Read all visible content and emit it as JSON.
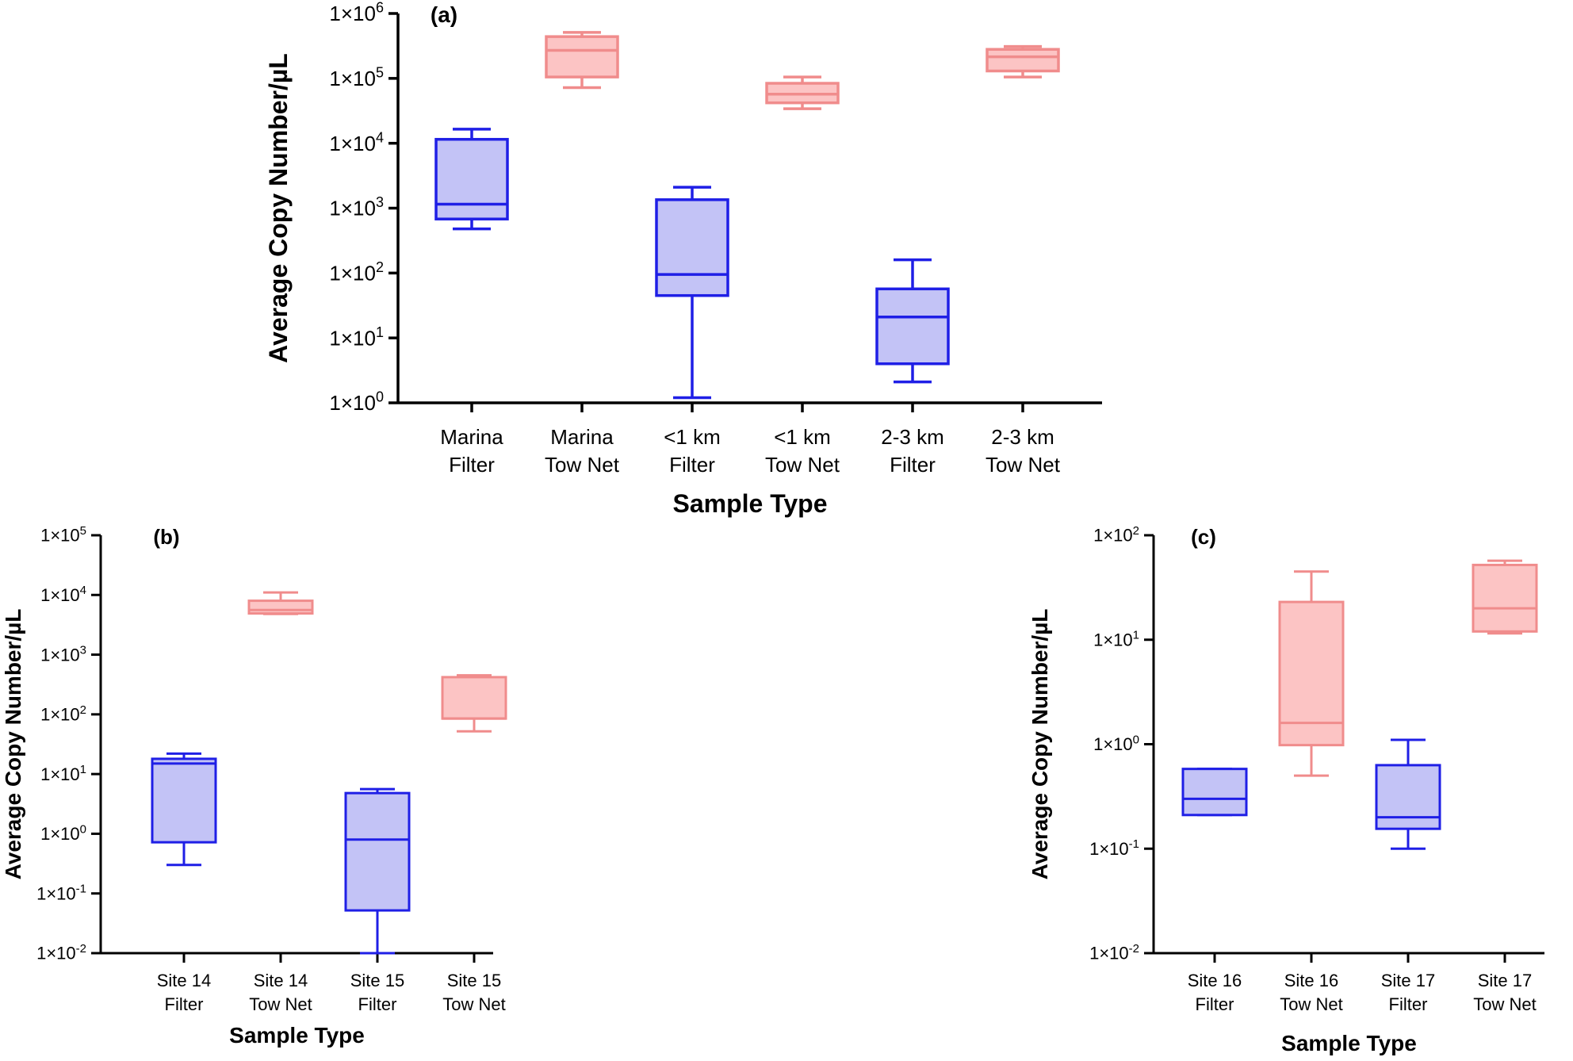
{
  "colors": {
    "filter_stroke": "#1f1fe6",
    "filter_fill": "#c3c3f6",
    "townet_stroke": "#f08c8c",
    "townet_fill": "#fcc4c4",
    "axis": "#000000"
  },
  "chart_data": [
    {
      "id": "a",
      "type": "box",
      "panel_label": "(a)",
      "xlabel": "Sample Type",
      "ylabel": "Average Copy Number/µL",
      "scale": "log10",
      "ylim_exp": [
        0,
        6
      ],
      "ytick_labels": [
        {
          "base": "1×10",
          "exp": "0"
        },
        {
          "base": "1×10",
          "exp": "1"
        },
        {
          "base": "1×10",
          "exp": "2"
        },
        {
          "base": "1×10",
          "exp": "3"
        },
        {
          "base": "1×10",
          "exp": "4"
        },
        {
          "base": "1×10",
          "exp": "5"
        },
        {
          "base": "1×10",
          "exp": "6"
        }
      ],
      "categories": [
        {
          "line1": "Marina",
          "line2": "Filter",
          "kind": "filter",
          "min": 480,
          "q1": 680,
          "median": 1150,
          "q3": 11500,
          "max": 16500
        },
        {
          "line1": "Marina",
          "line2": "Tow Net",
          "kind": "townet",
          "min": 72000,
          "q1": 105000,
          "median": 270000,
          "q3": 440000,
          "max": 510000
        },
        {
          "line1": "<1 km",
          "line2": "Filter",
          "kind": "filter",
          "min": 1.2,
          "q1": 45,
          "median": 95,
          "q3": 1350,
          "max": 2100
        },
        {
          "line1": "<1 km",
          "line2": "Tow Net",
          "kind": "townet",
          "min": 34000,
          "q1": 42000,
          "median": 57000,
          "q3": 84000,
          "max": 105000
        },
        {
          "line1": "2-3 km",
          "line2": "Filter",
          "kind": "filter",
          "min": 2.1,
          "q1": 4,
          "median": 21,
          "q3": 57,
          "max": 160
        },
        {
          "line1": "2-3 km",
          "line2": "Tow Net",
          "kind": "townet",
          "min": 105000,
          "q1": 130000,
          "median": 215000,
          "q3": 280000,
          "max": 310000
        }
      ]
    },
    {
      "id": "b",
      "type": "box",
      "panel_label": "(b)",
      "xlabel": "Sample Type",
      "ylabel": "Average Copy Number/µL",
      "scale": "log10",
      "ylim_exp": [
        -2,
        5
      ],
      "ytick_labels": [
        {
          "base": "1×10",
          "exp": "-2"
        },
        {
          "base": "1×10",
          "exp": "-1"
        },
        {
          "base": "1×10",
          "exp": "0"
        },
        {
          "base": "1×10",
          "exp": "1"
        },
        {
          "base": "1×10",
          "exp": "2"
        },
        {
          "base": "1×10",
          "exp": "3"
        },
        {
          "base": "1×10",
          "exp": "4"
        },
        {
          "base": "1×10",
          "exp": "5"
        }
      ],
      "categories": [
        {
          "line1": "Site 14",
          "line2": "Filter",
          "kind": "filter",
          "min": 0.3,
          "q1": 0.72,
          "median": 15,
          "q3": 18,
          "max": 22
        },
        {
          "line1": "Site 14",
          "line2": "Tow Net",
          "kind": "townet",
          "min": 4800,
          "q1": 4900,
          "median": 5600,
          "q3": 8000,
          "max": 11000
        },
        {
          "line1": "Site 15",
          "line2": "Filter",
          "kind": "filter",
          "min": 0.01,
          "q1": 0.052,
          "median": 0.8,
          "q3": 4.8,
          "max": 5.6
        },
        {
          "line1": "Site 15",
          "line2": "Tow Net",
          "kind": "townet",
          "min": 52,
          "q1": 85,
          "median": 85,
          "q3": 420,
          "max": 450
        }
      ]
    },
    {
      "id": "c",
      "type": "box",
      "panel_label": "(c)",
      "xlabel": "Sample Type",
      "ylabel": "Average Copy Number/µL",
      "scale": "log10",
      "ylim_exp": [
        -2,
        2
      ],
      "ytick_labels": [
        {
          "base": "1×10",
          "exp": "-2"
        },
        {
          "base": "1×10",
          "exp": "-1"
        },
        {
          "base": "1×10",
          "exp": "0"
        },
        {
          "base": "1×10",
          "exp": "1"
        },
        {
          "base": "1×10",
          "exp": "2"
        }
      ],
      "categories": [
        {
          "line1": "Site 16",
          "line2": "Filter",
          "kind": "filter",
          "min": 0.21,
          "q1": 0.21,
          "median": 0.3,
          "q3": 0.58,
          "max": 0.58
        },
        {
          "line1": "Site 16",
          "line2": "Tow Net",
          "kind": "townet",
          "min": 0.5,
          "q1": 0.98,
          "median": 1.6,
          "q3": 23,
          "max": 45
        },
        {
          "line1": "Site 17",
          "line2": "Filter",
          "kind": "filter",
          "min": 0.1,
          "q1": 0.155,
          "median": 0.2,
          "q3": 0.63,
          "max": 1.1
        },
        {
          "line1": "Site 17",
          "line2": "Tow Net",
          "kind": "townet",
          "min": 11.5,
          "q1": 12,
          "median": 20,
          "q3": 52,
          "max": 57
        }
      ]
    }
  ]
}
